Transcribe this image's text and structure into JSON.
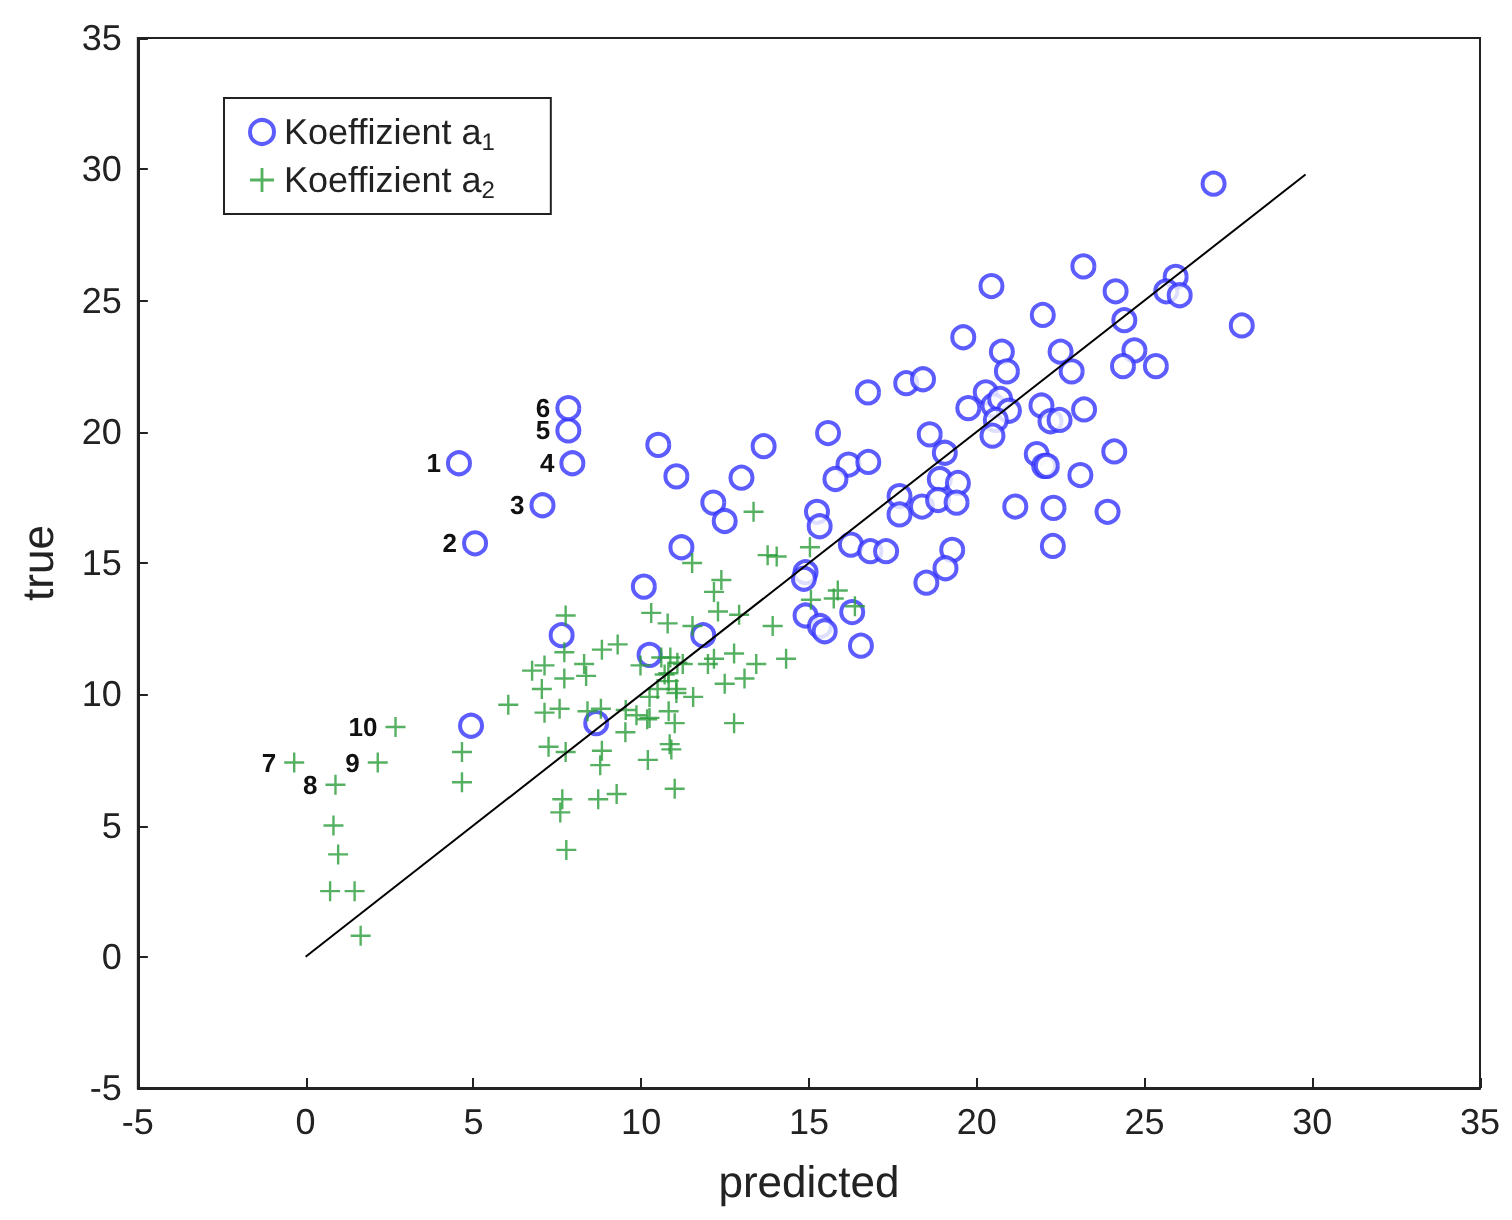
{
  "chart_data": {
    "type": "scatter",
    "xlabel": "predicted",
    "ylabel": "true",
    "xlim": [
      -5,
      35
    ],
    "xticks": [
      -5,
      0,
      5,
      10,
      15,
      20,
      25,
      30,
      35
    ],
    "ylim": [
      -5,
      35
    ],
    "yticks": [
      -5,
      0,
      5,
      10,
      15,
      20,
      25,
      30,
      35
    ],
    "grid": false,
    "legend": "top left",
    "series": [
      {
        "name": "Koeffizient a$_{1}$",
        "color": "#3333ff",
        "marker": "circle",
        "x": [
          4.57,
          5.05,
          7.06,
          7.95,
          7.83,
          7.83,
          10.51,
          11.05,
          11.2,
          10.08,
          7.63,
          10.25,
          8.66,
          4.93,
          13.65,
          12.99,
          12.15,
          12.49,
          11.85,
          16.76,
          17.9,
          18.4,
          19.75,
          15.57,
          16.18,
          16.77,
          15.79,
          18.6,
          19.05,
          18.9,
          19.44,
          17.7,
          18.37,
          18.85,
          19.4,
          17.7,
          15.24,
          15.32,
          16.25,
          16.83,
          17.3,
          19.27,
          19.07,
          18.5,
          14.9,
          14.85,
          14.9,
          15.33,
          15.47,
          16.29,
          16.55,
          27.06,
          23.18,
          20.44,
          25.93,
          25.65,
          26.05,
          24.14,
          21.97,
          24.4,
          27.9,
          19.6,
          20.75,
          20.9,
          22.5,
          22.83,
          24.7,
          24.36,
          25.34,
          20.27,
          20.5,
          20.7,
          20.96,
          20.57,
          20.47,
          21.93,
          23.2,
          22.2,
          22.47,
          21.79,
          22.01,
          22.09,
          24.1,
          23.09,
          21.15,
          22.29,
          23.9,
          22.27
        ],
        "values": [
          18.8,
          15.75,
          17.2,
          18.8,
          20.05,
          20.9,
          19.5,
          18.3,
          15.6,
          14.1,
          12.25,
          11.5,
          8.9,
          8.8,
          19.45,
          18.25,
          17.3,
          16.6,
          12.25,
          21.5,
          21.85,
          22.0,
          20.9,
          19.95,
          18.75,
          18.85,
          18.2,
          19.9,
          19.2,
          18.2,
          18.05,
          17.55,
          17.15,
          17.4,
          17.3,
          16.85,
          16.95,
          16.4,
          15.7,
          15.45,
          15.45,
          15.5,
          14.8,
          14.25,
          14.65,
          14.4,
          13.0,
          12.6,
          12.4,
          13.13,
          11.85,
          29.45,
          26.3,
          25.55,
          25.9,
          25.35,
          25.2,
          25.35,
          24.45,
          24.25,
          24.05,
          23.6,
          23.05,
          22.3,
          23.05,
          22.3,
          23.1,
          22.5,
          22.5,
          21.5,
          21.0,
          21.25,
          20.8,
          20.45,
          19.85,
          21.0,
          20.85,
          20.4,
          20.45,
          19.15,
          18.7,
          18.7,
          19.25,
          18.35,
          17.15,
          17.1,
          16.95,
          15.65
        ]
      },
      {
        "name": "Koeffizient a$_{2}$",
        "color": "#2a9d3a",
        "marker": "cross",
        "x": [
          2.68,
          -0.34,
          2.15,
          0.89,
          0.83,
          0.97,
          0.73,
          1.46,
          1.64,
          4.66,
          4.66,
          7.75,
          10.3,
          10.79,
          8.83,
          9.3,
          7.71,
          6.75,
          7.12,
          8.3,
          7.71,
          8.36,
          7.04,
          6.04,
          7.57,
          7.12,
          8.4,
          8.8,
          9.98,
          9.54,
          9.86,
          10.25,
          7.24,
          7.75,
          8.83,
          8.78,
          10.2,
          10.85,
          7.65,
          7.59,
          8.72,
          9.27,
          7.77,
          11.0,
          10.49,
          11.05,
          10.81,
          11.0,
          13.35,
          11.52,
          13.77,
          14.04,
          12.39,
          12.17,
          12.29,
          12.92,
          15.06,
          15.86,
          15.74,
          16.37,
          15.03,
          13.92,
          14.32,
          12.77,
          13.43,
          13.08,
          12.49,
          12.77,
          11.55,
          11.05,
          12.17,
          11.99,
          11.53,
          11.08,
          11.24,
          10.87,
          10.6,
          10.7,
          10.82,
          10.25,
          10.18,
          9.53,
          10.82,
          10.9
        ],
        "values": [
          8.75,
          7.4,
          7.4,
          6.55,
          5.0,
          3.9,
          2.5,
          2.5,
          0.8,
          7.8,
          6.65,
          13.0,
          13.1,
          12.7,
          11.7,
          11.9,
          11.6,
          10.9,
          11.1,
          11.15,
          10.6,
          10.7,
          10.2,
          9.6,
          9.45,
          9.3,
          9.35,
          9.45,
          11.1,
          9.4,
          9.2,
          9.1,
          8.0,
          7.8,
          7.85,
          7.3,
          7.5,
          8.1,
          6.0,
          5.5,
          6.0,
          6.2,
          4.07,
          6.4,
          10.2,
          10.2,
          10.8,
          8.9,
          16.95,
          15.0,
          15.3,
          15.25,
          14.35,
          13.9,
          13.15,
          13.03,
          13.6,
          13.95,
          13.65,
          13.35,
          15.6,
          12.6,
          11.35,
          11.55,
          11.15,
          10.6,
          10.4,
          8.9,
          9.9,
          10.05,
          11.35,
          11.15,
          12.6,
          11.2,
          11.15,
          11.4,
          11.4,
          10.75,
          10.5,
          9.9,
          9.05,
          8.55,
          9.35,
          7.9
        ]
      },
      {
        "type": "line",
        "color": "#000000",
        "marker": "none",
        "x": [
          0,
          29.8
        ],
        "values": [
          0,
          29.8
        ]
      }
    ],
    "annotations": [
      {
        "text": "1",
        "x": 4.57,
        "y": 18.8
      },
      {
        "text": "2",
        "x": 5.05,
        "y": 15.75
      },
      {
        "text": "3",
        "x": 7.06,
        "y": 17.2
      },
      {
        "text": "4",
        "x": 7.95,
        "y": 18.8
      },
      {
        "text": "5",
        "x": 7.83,
        "y": 20.05
      },
      {
        "text": "6",
        "x": 7.83,
        "y": 20.9
      },
      {
        "text": "7",
        "x": -0.34,
        "y": 7.4
      },
      {
        "text": "8",
        "x": 0.89,
        "y": 6.55
      },
      {
        "text": "9",
        "x": 2.15,
        "y": 7.4
      },
      {
        "text": "10",
        "x": 2.68,
        "y": 8.75
      }
    ]
  }
}
